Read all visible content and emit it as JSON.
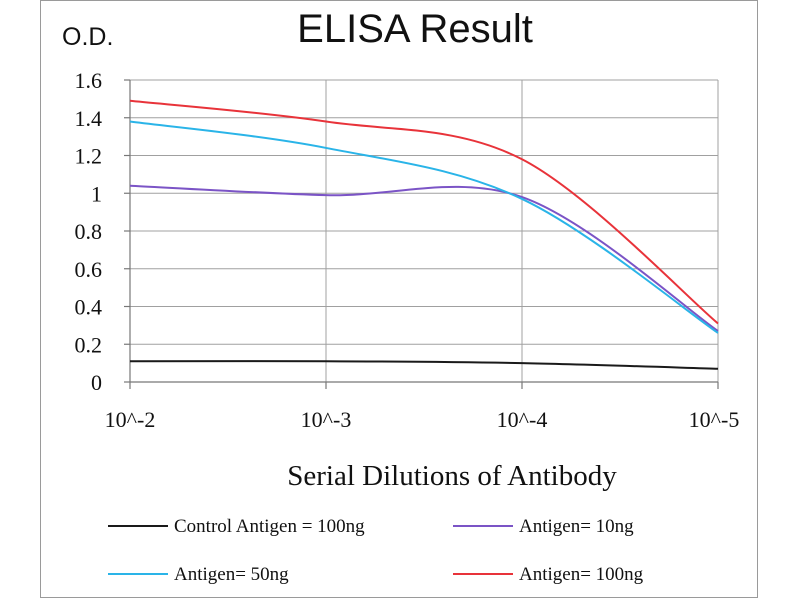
{
  "chart_data": {
    "type": "line",
    "title": "ELISA Result",
    "ylabel": "O.D.",
    "xlabel": "Serial Dilutions  of Antibody",
    "x_tick_labels": [
      "10^-2",
      "10^-3",
      "10^-4",
      "10^-5"
    ],
    "y_tick_labels": [
      "0",
      "0.2",
      "0.4",
      "0.6",
      "0.8",
      "1",
      "1.2",
      "1.4",
      "1.6"
    ],
    "ylim": [
      0,
      1.6
    ],
    "grid": true,
    "legend_position": "bottom",
    "series": [
      {
        "name": "Control Antigen = 100ng",
        "color": "#1a1a1a",
        "x": [
          0.01,
          0.001,
          0.0001,
          1e-05
        ],
        "values": [
          0.11,
          0.11,
          0.1,
          0.07
        ]
      },
      {
        "name": "Antigen= 10ng",
        "color": "#7b54c6",
        "x": [
          0.01,
          0.001,
          0.0001,
          1e-05
        ],
        "values": [
          1.04,
          0.99,
          0.98,
          0.27
        ]
      },
      {
        "name": "Antigen= 50ng",
        "color": "#2ab4e8",
        "x": [
          0.01,
          0.001,
          0.0001,
          1e-05
        ],
        "values": [
          1.38,
          1.24,
          0.97,
          0.26
        ]
      },
      {
        "name": "Antigen= 100ng",
        "color": "#e8333a",
        "x": [
          0.01,
          0.001,
          0.0001,
          1e-05
        ],
        "values": [
          1.49,
          1.38,
          1.18,
          0.31
        ]
      }
    ]
  }
}
